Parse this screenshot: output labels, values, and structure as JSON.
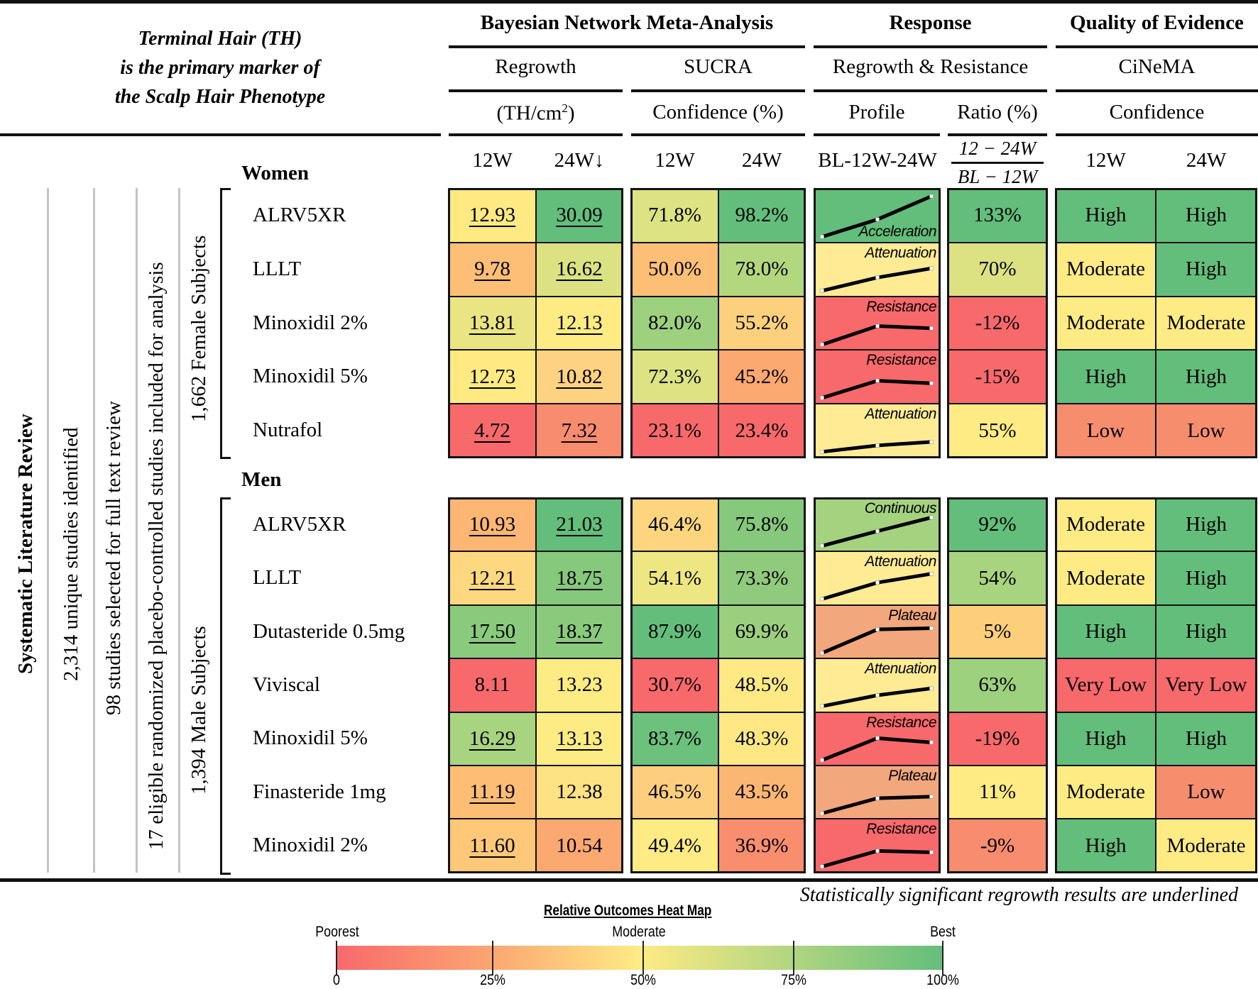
{
  "colors": {
    "poor": "#F8696B",
    "moderate": "#FFEB84",
    "best": "#63BE7B"
  },
  "left_title": [
    "Terminal Hair (TH)",
    "is the primary marker of",
    "the Scalp Hair Phenotype"
  ],
  "headers": {
    "groups": [
      "Bayesian Network Meta-Analysis",
      "Response",
      "Quality of Evidence"
    ],
    "sub1": [
      "Regrowth",
      "SUCRA",
      "Regrowth & Resistance",
      "CiNeMA"
    ],
    "sub2": [
      "(TH/cm",
      "Confidence (%)",
      "Profile",
      "Ratio (%)",
      "Confidence"
    ],
    "sub2_sup": "2",
    "sub2_close": ")",
    "weeks": {
      "regrowth": [
        "12W",
        "24W↓"
      ],
      "sucra": [
        "12W",
        "24W"
      ],
      "profile": "BL-12W-24W",
      "ratio_num": "12 − 24W",
      "ratio_den": "BL − 12W",
      "cinema": [
        "12W",
        "24W"
      ]
    }
  },
  "flow": {
    "title": "Systematic Literature Review",
    "step1": "2,314 unique studies identified",
    "step2": "98 studies selected for full text review",
    "step3": "17 eligible randomized placebo-controlled studies included for analysis",
    "women_subjects": "1,662 Female Subjects",
    "men_subjects": "1,394 Male Subjects"
  },
  "chart_data": {
    "type": "table",
    "title": "Terminal Hair (TH) is the primary marker of the Scalp Hair Phenotype",
    "columns": [
      "Regrowth 12W (TH/cm2)",
      "Regrowth 24W (TH/cm2)",
      "SUCRA 12W",
      "SUCRA 24W",
      "Profile BL-12W-24W",
      "Ratio (12-24W)/(BL-12W)",
      "CiNeMA 12W",
      "CiNeMA 24W"
    ],
    "groups": [
      {
        "name": "Women",
        "rows": [
          {
            "drug": "ALRV5XR",
            "r12": "12.93",
            "r24": "30.09",
            "r12_sig": true,
            "r24_sig": true,
            "s12": "71.8%",
            "s24": "98.2%",
            "profile": "Acceleration",
            "ratio": "133%",
            "c12": "High",
            "c24": "High",
            "colors": [
              "#FEE983",
              "#63BE7B",
              "#DDE283",
              "#63BE7B",
              "#63BE7B",
              "#63BE7B",
              "#63BE7B",
              "#63BE7B"
            ]
          },
          {
            "drug": "LLLT",
            "r12": "9.78",
            "r24": "16.62",
            "r12_sig": true,
            "r24_sig": true,
            "s12": "50.0%",
            "s24": "78.0%",
            "profile": "Attenuation",
            "ratio": "70%",
            "c12": "Moderate",
            "c24": "High",
            "colors": [
              "#FDBE76",
              "#DCE182",
              "#FDBE76",
              "#B3D77F",
              "#FFEB94",
              "#DCE182",
              "#FFEB84",
              "#63BE7B"
            ]
          },
          {
            "drug": "Minoxidil 2%",
            "r12": "13.81",
            "r24": "12.13",
            "r12_sig": true,
            "r24_sig": true,
            "s12": "82.0%",
            "s24": "55.2%",
            "profile": "Resistance",
            "ratio": "-12%",
            "c12": "Moderate",
            "c24": "Moderate",
            "colors": [
              "#EAE582",
              "#FFEB84",
              "#9DD17E",
              "#FDD07E",
              "#F8696B",
              "#F8696B",
              "#FFEB84",
              "#FFEB84"
            ]
          },
          {
            "drug": "Minoxidil 5%",
            "r12": "12.73",
            "r24": "10.82",
            "r12_sig": true,
            "r24_sig": true,
            "s12": "72.3%",
            "s24": "45.2%",
            "profile": "Resistance",
            "ratio": "-15%",
            "c12": "High",
            "c24": "High",
            "colors": [
              "#FEE983",
              "#FDD280",
              "#DDE283",
              "#FBA871",
              "#F8696B",
              "#F8696B",
              "#63BE7B",
              "#63BE7B"
            ]
          },
          {
            "drug": "Nutrafol",
            "r12": "4.72",
            "r24": "7.32",
            "r12_sig": true,
            "r24_sig": true,
            "s12": "23.1%",
            "s24": "23.4%",
            "profile": "Attenuation",
            "ratio": "55%",
            "c12": "Low",
            "c24": "Low",
            "colors": [
              "#F8696B",
              "#F88C6F",
              "#F8696B",
              "#F8696B",
              "#FFEB94",
              "#FFEB84",
              "#F68E6E",
              "#F68E6E"
            ]
          }
        ]
      },
      {
        "name": "Men",
        "rows": [
          {
            "drug": "ALRV5XR",
            "r12": "10.93",
            "r24": "21.03",
            "r12_sig": true,
            "r24_sig": true,
            "s12": "46.4%",
            "s24": "75.8%",
            "profile": "Continuous",
            "ratio": "92%",
            "c12": "Moderate",
            "c24": "High",
            "colors": [
              "#FDB673",
              "#63BE7B",
              "#FED57F",
              "#86C87C",
              "#A4D27F",
              "#63BE7B",
              "#FFEB84",
              "#63BE7B"
            ]
          },
          {
            "drug": "LLLT",
            "r12": "12.21",
            "r24": "18.75",
            "r12_sig": true,
            "r24_sig": true,
            "s12": "54.1%",
            "s24": "73.3%",
            "profile": "Attenuation",
            "ratio": "54%",
            "c12": "Moderate",
            "c24": "High",
            "colors": [
              "#FED880",
              "#86C87C",
              "#EDE683",
              "#8FCA7D",
              "#FFEB94",
              "#A9D47F",
              "#FFEB84",
              "#63BE7B"
            ]
          },
          {
            "drug": "Dutasteride 0.5mg",
            "r12": "17.50",
            "r24": "18.37",
            "r12_sig": true,
            "r24_sig": true,
            "s12": "87.9%",
            "s24": "69.9%",
            "profile": "Plateau",
            "ratio": "5%",
            "c12": "High",
            "c24": "High",
            "colors": [
              "#8ACA7D",
              "#8ACA7D",
              "#63BE7B",
              "#9BCF7E",
              "#F2A77C",
              "#FECF7B",
              "#63BE7B",
              "#63BE7B"
            ]
          },
          {
            "drug": "Viviscal",
            "r12": "8.11",
            "r24": "13.23",
            "r12_sig": false,
            "r24_sig": false,
            "s12": "30.7%",
            "s24": "48.5%",
            "profile": "Attenuation",
            "ratio": "63%",
            "c12": "Very Low",
            "c24": "Very Low",
            "colors": [
              "#F8696B",
              "#FDEB84",
              "#F8696B",
              "#FFE984",
              "#FFEB94",
              "#9DD17E",
              "#F8696B",
              "#F8696B"
            ]
          },
          {
            "drug": "Minoxidil 5%",
            "r12": "16.29",
            "r24": "13.13",
            "r12_sig": true,
            "r24_sig": true,
            "s12": "83.7%",
            "s24": "48.3%",
            "profile": "Resistance",
            "ratio": "-19%",
            "c12": "High",
            "c24": "High",
            "colors": [
              "#A8D47F",
              "#FDEB84",
              "#6CC17C",
              "#FFE884",
              "#F8696B",
              "#F8696B",
              "#63BE7B",
              "#63BE7B"
            ]
          },
          {
            "drug": "Finasteride 1mg",
            "r12": "11.19",
            "r24": "12.38",
            "r12_sig": true,
            "r24_sig": false,
            "s12": "46.5%",
            "s24": "43.5%",
            "profile": "Plateau",
            "ratio": "11%",
            "c12": "Moderate",
            "c24": "Low",
            "colors": [
              "#FDBD75",
              "#FEE283",
              "#FDCE7E",
              "#FBB673",
              "#F2A77C",
              "#FFEB84",
              "#FFEB84",
              "#F68E6E"
            ]
          },
          {
            "drug": "Minoxidil 2%",
            "r12": "11.60",
            "r24": "10.54",
            "r12_sig": true,
            "r24_sig": false,
            "s12": "49.4%",
            "s24": "36.9%",
            "profile": "Resistance",
            "ratio": "-9%",
            "c12": "High",
            "c24": "Moderate",
            "colors": [
              "#FEC878",
              "#FBA871",
              "#FFEB84",
              "#F88E6E",
              "#F8696B",
              "#F88C6F",
              "#63BE7B",
              "#FFEB84"
            ]
          }
        ]
      }
    ]
  },
  "footnote": "Statistically significant regrowth results are underlined",
  "legend": {
    "title": "Relative Outcomes Heat Map",
    "labels_top": [
      "Poorest",
      "Moderate",
      "Best"
    ],
    "ticks": [
      "0",
      "25%",
      "50%",
      "75%",
      "100%"
    ]
  }
}
